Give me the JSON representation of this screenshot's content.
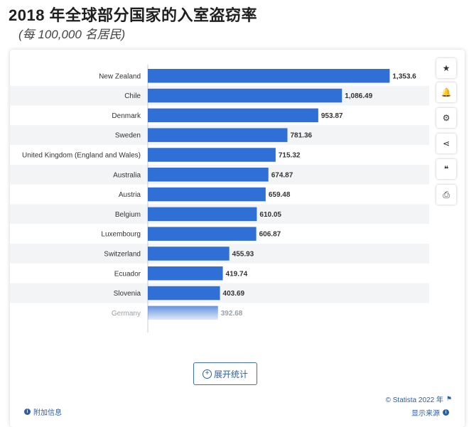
{
  "header": {
    "title": "2018 年全球部分国家的入室盗窃率",
    "subtitle": "(每 100,000 名居民)"
  },
  "chart_data": {
    "type": "bar",
    "orientation": "horizontal",
    "title": "2018 年全球部分国家的入室盗窃率",
    "subtitle": "(每 100,000 名居民)",
    "categories": [
      "New Zealand",
      "Chile",
      "Denmark",
      "Sweden",
      "United Kingdom (England and Wales)",
      "Australia",
      "Austria",
      "Belgium",
      "Luxembourg",
      "Switzerland",
      "Ecuador",
      "Slovenia",
      "Germany"
    ],
    "values": [
      1353.6,
      1086.49,
      953.87,
      781.36,
      715.32,
      674.87,
      659.48,
      610.05,
      606.87,
      455.93,
      419.74,
      403.69,
      392.68
    ],
    "value_labels": [
      "1,353.6",
      "1,086.49",
      "953.87",
      "781.36",
      "715.32",
      "674.87",
      "659.48",
      "610.05",
      "606.87",
      "455.93",
      "419.74",
      "403.69",
      "392.68"
    ],
    "xlim": [
      0,
      1360
    ],
    "bar_color": "#2f6fd6",
    "grid": "row-stripes",
    "faded_last_row": true
  },
  "toolbar": {
    "icons": [
      "star-icon",
      "bell-icon",
      "gear-icon",
      "share-icon",
      "quote-icon",
      "print-icon"
    ],
    "glyphs": [
      "★",
      "🔔",
      "⚙",
      "⋖",
      "❝",
      "⎙"
    ]
  },
  "expand_button": {
    "label": "展开统计",
    "icon": "+"
  },
  "footer": {
    "more_info": "附加信息",
    "copyright": "© Statista 2022 年",
    "show_source": "显示来源"
  },
  "colors": {
    "accent": "#2b5ea8",
    "bar": "#2f6fd6"
  }
}
